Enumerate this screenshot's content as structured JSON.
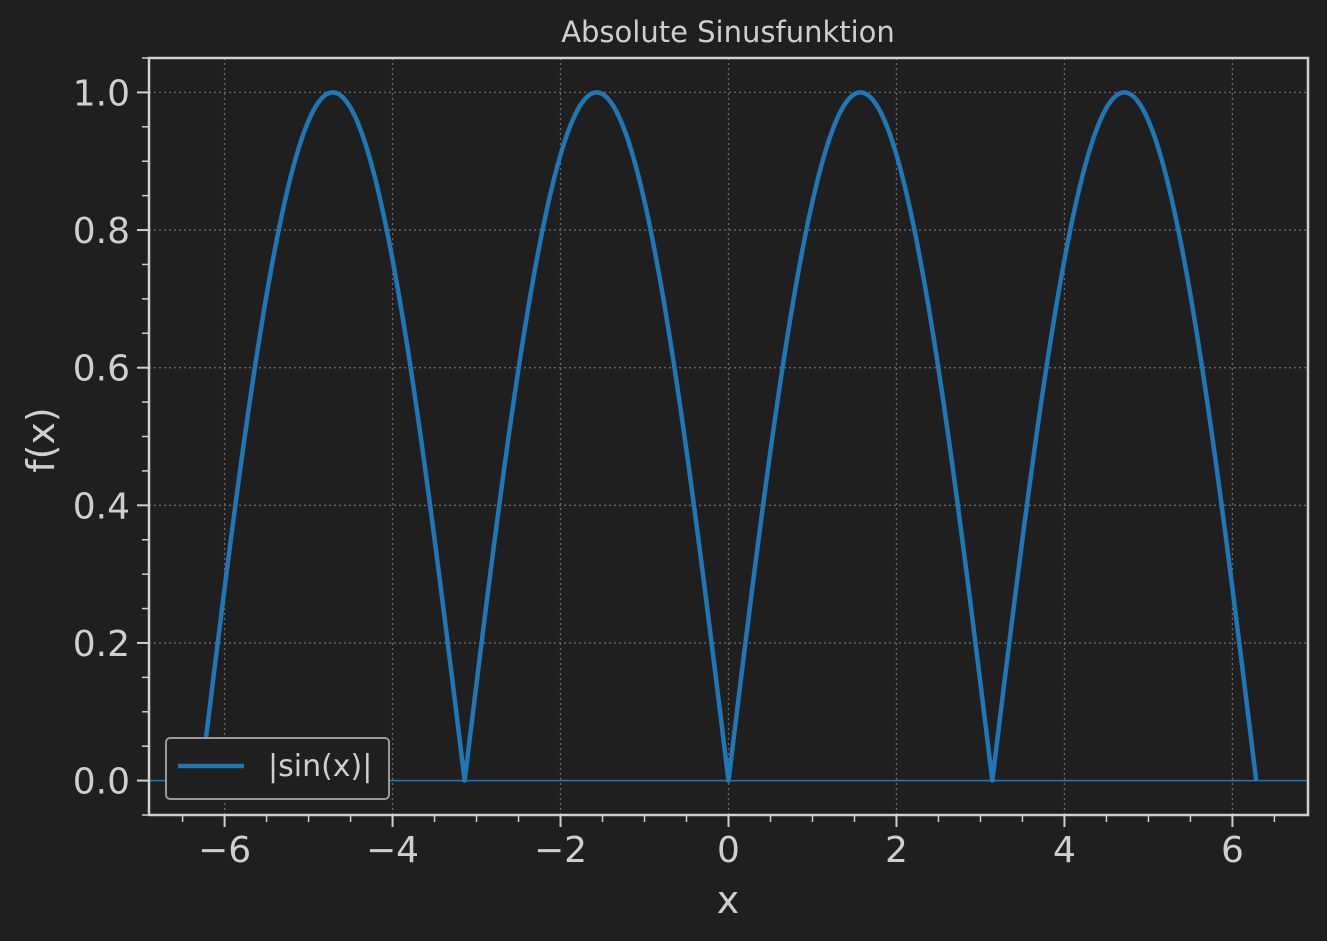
{
  "chart_data": {
    "type": "line",
    "title": "Absolute Sinusfunktion",
    "xlabel": "x",
    "ylabel": "f(x)",
    "xlim": [
      -6.9,
      6.9
    ],
    "ylim": [
      -0.05,
      1.05
    ],
    "x_ticks": [
      -6,
      -4,
      -2,
      0,
      2,
      4,
      6
    ],
    "x_tick_labels": [
      "−6",
      "−4",
      "−2",
      "0",
      "2",
      "4",
      "6"
    ],
    "y_ticks": [
      0.0,
      0.2,
      0.4,
      0.6,
      0.8,
      1.0
    ],
    "y_tick_labels": [
      "0.0",
      "0.2",
      "0.4",
      "0.6",
      "0.8",
      "1.0"
    ],
    "grid": true,
    "legend_position": "lower-left",
    "series": [
      {
        "name": "|sin(x)|",
        "color": "#1f77b4",
        "function": "abs(sin(x))",
        "x_range": [
          -6.283,
          6.283
        ],
        "key_points": [
          {
            "x": -6.283,
            "y": 0.0
          },
          {
            "x": -4.712,
            "y": 1.0
          },
          {
            "x": -3.142,
            "y": 0.0
          },
          {
            "x": -1.571,
            "y": 1.0
          },
          {
            "x": 0.0,
            "y": 0.0
          },
          {
            "x": 1.571,
            "y": 1.0
          },
          {
            "x": 3.142,
            "y": 0.0
          },
          {
            "x": 4.712,
            "y": 1.0
          },
          {
            "x": 6.283,
            "y": 0.0
          }
        ]
      }
    ],
    "reference_line": {
      "y": 0.0,
      "color": "#1f77b4"
    },
    "colors": {
      "background": "#1f1f1f",
      "axes_edge": "#cfcfcf",
      "grid": "#6a6a6a",
      "text": "#cfcfcf",
      "legend_edge": "#9a9a9a"
    }
  }
}
